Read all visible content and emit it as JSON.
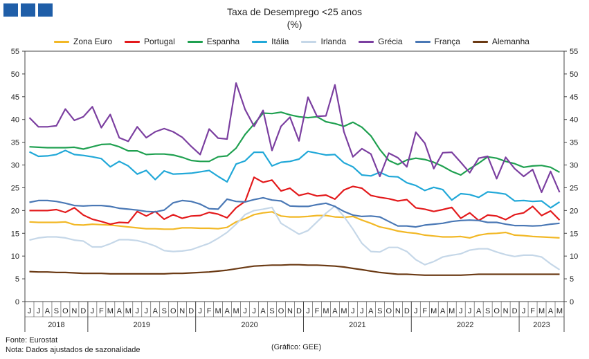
{
  "header": {
    "logo_color": "#1f5ea8",
    "title": "Taxa de Desemprego <25 anos",
    "subtitle": "(%)"
  },
  "footer": {
    "source": "Fonte: Eurostat",
    "note": "Nota: Dados ajustados de sazonalidade",
    "credit": "(Gráfico: GEE)"
  },
  "chart_data": {
    "type": "line",
    "title": "Taxa de Desemprego <25 anos",
    "subtitle": "(%)",
    "ylim": [
      0,
      55
    ],
    "yticks": [
      0,
      5,
      10,
      15,
      20,
      25,
      30,
      35,
      40,
      45,
      50,
      55
    ],
    "grid": false,
    "legend_position": "top",
    "x": [
      "J",
      "J",
      "A",
      "S",
      "O",
      "N",
      "D",
      "J",
      "F",
      "M",
      "A",
      "M",
      "J",
      "J",
      "A",
      "S",
      "O",
      "N",
      "D",
      "J",
      "F",
      "M",
      "A",
      "M",
      "J",
      "J",
      "A",
      "S",
      "O",
      "N",
      "D",
      "J",
      "F",
      "M",
      "A",
      "M",
      "J",
      "J",
      "A",
      "S",
      "O",
      "N",
      "D",
      "J",
      "F",
      "M",
      "A",
      "M",
      "J",
      "J",
      "A",
      "S",
      "O",
      "N",
      "D",
      "J",
      "F",
      "M",
      "A",
      "M"
    ],
    "years": [
      {
        "label": "2018",
        "start": 0,
        "end": 6
      },
      {
        "label": "2019",
        "start": 7,
        "end": 18
      },
      {
        "label": "2020",
        "start": 19,
        "end": 30
      },
      {
        "label": "2021",
        "start": 31,
        "end": 42
      },
      {
        "label": "2022",
        "start": 43,
        "end": 54
      },
      {
        "label": "2023",
        "start": 55,
        "end": 59
      }
    ],
    "series": [
      {
        "name": "Zona Euro",
        "color": "#f2b826",
        "values": [
          17.5,
          17.4,
          17.4,
          17.4,
          17.5,
          16.9,
          16.8,
          17.0,
          16.9,
          16.8,
          16.6,
          16.4,
          16.2,
          16.0,
          16.0,
          15.9,
          15.9,
          16.2,
          16.2,
          16.1,
          16.1,
          16.0,
          16.3,
          17.5,
          18.2,
          19.1,
          19.5,
          19.7,
          18.8,
          18.6,
          18.6,
          18.7,
          18.9,
          18.9,
          18.6,
          18.5,
          18.7,
          17.9,
          17.2,
          16.4,
          16.0,
          15.5,
          15.2,
          15.0,
          14.6,
          14.4,
          14.2,
          14.2,
          14.3,
          14.0,
          14.6,
          14.9,
          15.0,
          15.2,
          14.6,
          14.5,
          14.3,
          14.2,
          14.1,
          14.0
        ]
      },
      {
        "name": "Portugal",
        "color": "#e31a1c",
        "values": [
          20.0,
          20.0,
          20.0,
          20.2,
          19.6,
          20.6,
          19.0,
          18.1,
          17.6,
          17.0,
          17.4,
          17.3,
          19.8,
          18.8,
          19.8,
          18.1,
          19.1,
          18.3,
          18.8,
          18.9,
          19.6,
          19.2,
          18.4,
          20.6,
          22.0,
          27.3,
          26.2,
          26.7,
          24.3,
          24.9,
          23.3,
          23.8,
          23.2,
          23.4,
          22.5,
          24.5,
          25.3,
          24.9,
          23.3,
          22.9,
          22.6,
          22.1,
          22.4,
          20.6,
          20.3,
          19.8,
          20.2,
          20.7,
          18.3,
          19.5,
          17.8,
          19.0,
          18.8,
          18.0,
          19.1,
          19.5,
          20.9,
          18.9,
          19.9,
          17.9
        ]
      },
      {
        "name": "Espanha",
        "color": "#1fa050",
        "values": [
          34.0,
          33.9,
          33.8,
          33.8,
          33.8,
          33.9,
          33.5,
          34.0,
          34.5,
          34.6,
          34.0,
          33.1,
          33.1,
          32.3,
          32.4,
          32.4,
          32.2,
          31.7,
          31.0,
          30.8,
          30.8,
          31.8,
          32.0,
          33.7,
          36.7,
          39.0,
          41.4,
          41.3,
          41.6,
          41.0,
          40.6,
          40.4,
          40.6,
          39.5,
          39.1,
          38.5,
          39.4,
          38.3,
          36.4,
          33.4,
          31.0,
          30.1,
          31.1,
          31.5,
          31.2,
          30.6,
          29.7,
          28.6,
          27.8,
          29.2,
          30.4,
          31.8,
          31.5,
          30.8,
          30.3,
          29.5,
          29.8,
          29.9,
          29.5,
          28.4
        ]
      },
      {
        "name": "Itália",
        "color": "#21a8d8",
        "values": [
          32.9,
          31.9,
          32.0,
          32.3,
          33.2,
          32.3,
          32.1,
          31.8,
          31.4,
          29.6,
          30.8,
          29.8,
          28.0,
          28.8,
          26.8,
          28.7,
          28.0,
          28.1,
          28.2,
          28.5,
          28.8,
          27.5,
          26.3,
          30.2,
          30.9,
          32.8,
          32.8,
          29.8,
          30.6,
          30.8,
          31.3,
          33.0,
          32.6,
          32.2,
          32.3,
          30.5,
          29.6,
          27.8,
          27.6,
          28.4,
          27.5,
          27.4,
          26.1,
          25.5,
          24.4,
          25.1,
          24.6,
          22.3,
          23.7,
          23.5,
          22.9,
          24.1,
          23.9,
          23.6,
          22.1,
          22.2,
          22.0,
          22.1,
          20.6,
          21.9
        ]
      },
      {
        "name": "Irlanda",
        "color": "#c5d7e8",
        "values": [
          13.5,
          14.0,
          14.2,
          14.2,
          14.0,
          13.5,
          13.3,
          12.0,
          12.0,
          12.7,
          13.6,
          13.6,
          13.4,
          12.9,
          12.2,
          11.2,
          11.0,
          11.1,
          11.4,
          12.1,
          12.8,
          13.9,
          15.2,
          17.0,
          19.1,
          20.0,
          20.3,
          20.7,
          17.2,
          16.0,
          14.8,
          15.6,
          17.5,
          19.4,
          21.0,
          18.7,
          15.9,
          12.8,
          11.0,
          10.9,
          11.9,
          11.9,
          11.0,
          9.2,
          8.1,
          8.8,
          9.8,
          10.2,
          10.5,
          11.3,
          11.6,
          11.6,
          10.9,
          10.3,
          9.9,
          10.2,
          10.2,
          9.8,
          8.3,
          7.0
        ]
      },
      {
        "name": "Grécia",
        "color": "#7b3fa0",
        "values": [
          40.4,
          38.4,
          38.4,
          38.6,
          42.3,
          39.8,
          40.6,
          42.8,
          38.2,
          41.1,
          36.0,
          35.2,
          38.4,
          36.0,
          37.3,
          38.0,
          37.3,
          36.1,
          34.1,
          32.3,
          37.9,
          35.9,
          35.7,
          48.0,
          42.2,
          38.5,
          42.0,
          33.2,
          38.5,
          40.5,
          35.3,
          44.9,
          40.7,
          40.8,
          47.6,
          37.3,
          31.8,
          33.6,
          32.4,
          27.5,
          32.6,
          31.6,
          29.6,
          37.2,
          34.8,
          29.2,
          32.7,
          32.8,
          30.6,
          28.3,
          31.5,
          31.9,
          27.0,
          31.7,
          29.2,
          27.5,
          29.0,
          24.0,
          28.6,
          24.0
        ]
      },
      {
        "name": "França",
        "color": "#4a78b5",
        "values": [
          21.8,
          22.2,
          22.2,
          22.0,
          21.6,
          21.1,
          21.0,
          21.1,
          21.1,
          20.9,
          20.5,
          20.3,
          20.1,
          19.8,
          19.7,
          20.1,
          21.7,
          22.2,
          22.0,
          21.4,
          20.4,
          20.3,
          22.5,
          22.0,
          21.9,
          22.4,
          22.8,
          22.3,
          22.1,
          21.0,
          20.9,
          20.9,
          21.3,
          21.6,
          20.9,
          19.8,
          19.0,
          18.7,
          18.8,
          18.6,
          17.6,
          16.6,
          16.6,
          16.4,
          16.8,
          17.0,
          17.2,
          17.6,
          17.8,
          17.9,
          17.8,
          17.4,
          17.4,
          17.0,
          16.7,
          16.7,
          16.6,
          16.7,
          17.0,
          17.2
        ]
      },
      {
        "name": "Alemanha",
        "color": "#6b3a14",
        "values": [
          6.6,
          6.5,
          6.5,
          6.4,
          6.4,
          6.3,
          6.2,
          6.2,
          6.2,
          6.1,
          6.1,
          6.1,
          6.1,
          6.1,
          6.1,
          6.1,
          6.2,
          6.2,
          6.3,
          6.4,
          6.5,
          6.7,
          6.9,
          7.2,
          7.5,
          7.8,
          7.9,
          8.0,
          8.0,
          8.1,
          8.1,
          8.0,
          8.0,
          7.9,
          7.8,
          7.6,
          7.3,
          7.0,
          6.7,
          6.4,
          6.2,
          6.0,
          6.0,
          5.9,
          5.8,
          5.8,
          5.8,
          5.8,
          5.8,
          5.9,
          6.0,
          6.0,
          6.0,
          6.0,
          6.0,
          6.0,
          6.0,
          6.0,
          6.0,
          6.0
        ]
      }
    ]
  }
}
